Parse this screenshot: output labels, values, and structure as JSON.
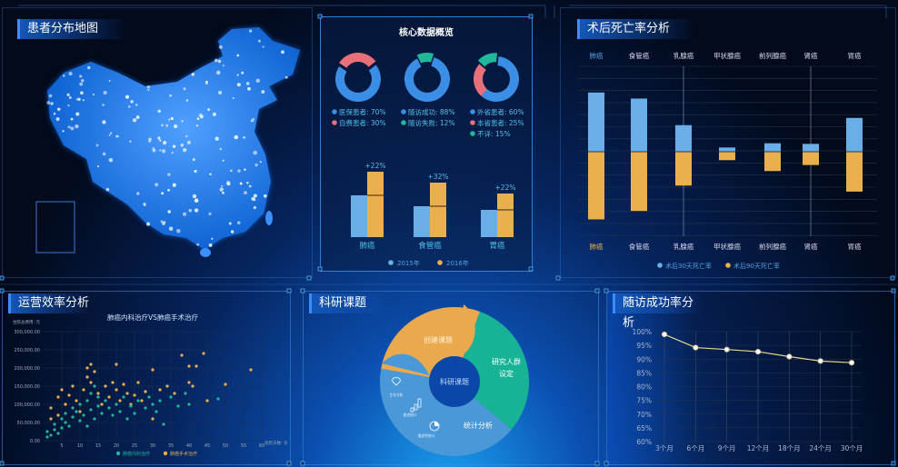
{
  "map_panel": {
    "title": "患者分布地图"
  },
  "core_panel": {
    "title": "核心数据概览",
    "donuts": [
      {
        "segments": [
          {
            "label": "医保患者",
            "value": 70,
            "color": "#3a8ee6"
          },
          {
            "label": "自费患者",
            "value": 30,
            "color": "#e8707a"
          }
        ],
        "highlight": 1,
        "legend": [
          "医保患者: 70%",
          "自费患者: 30%"
        ]
      },
      {
        "segments": [
          {
            "label": "随访成功",
            "value": 88,
            "color": "#3a8ee6"
          },
          {
            "label": "随访失败",
            "value": 12,
            "color": "#1fb89a"
          }
        ],
        "highlight": 1,
        "legend": [
          "随访成功: 88%",
          "随访失败: 12%"
        ]
      },
      {
        "segments": [
          {
            "label": "外省患者",
            "value": 60,
            "color": "#3a8ee6"
          },
          {
            "label": "本省患者",
            "value": 25,
            "color": "#e8707a"
          },
          {
            "label": "不详",
            "value": 15,
            "color": "#1fb89a"
          }
        ],
        "highlight": 2,
        "legend": [
          "外省患者: 60%",
          "本省患者: 25%",
          "不详: 15%"
        ]
      }
    ],
    "bars": {
      "categories": [
        "肺癌",
        "食管癌",
        "胃癌"
      ],
      "series": [
        {
          "name": "2015年",
          "values": [
            46,
            34,
            30
          ],
          "color": "#6aaee8"
        },
        {
          "name": "2016年",
          "values": [
            72,
            60,
            48
          ],
          "color": "#eab04d"
        }
      ],
      "growth": [
        "+22%",
        "+32%",
        "+22%"
      ]
    }
  },
  "mortality_panel": {
    "title": "术后死亡率分析",
    "chart_data": {
      "type": "bar",
      "categories": [
        "肺癌",
        "食管癌",
        "乳腺癌",
        "甲状腺癌",
        "前列腺癌",
        "肾癌",
        "胃癌"
      ],
      "series": [
        {
          "name": "术后30天死亡率",
          "values": [
            4.9,
            4.4,
            2.2,
            0.35,
            0.7,
            0.65,
            2.8
          ],
          "color": "#6aaee8"
        },
        {
          "name": "术后90天死亡率",
          "values": [
            5.6,
            4.9,
            2.8,
            0.7,
            1.6,
            1.1,
            3.3
          ],
          "color": "#eab04d"
        }
      ],
      "grid": true
    }
  },
  "efficiency_panel": {
    "title": "运营效率分析",
    "chart_data": {
      "type": "scatter",
      "title": "肺癌内科治疗VS肺癌手术治疗",
      "ylabel": "住院总费用: 元",
      "xlabel": "住院天数: 天",
      "xlim": [
        0,
        60
      ],
      "ylim": [
        0,
        300000
      ],
      "xticks": [
        "5",
        "10",
        "15",
        "20",
        "25",
        "30",
        "35",
        "40",
        "45",
        "50",
        "55",
        "60"
      ],
      "yticks": [
        "0.00",
        "50,000.00",
        "100,000.00",
        "150,000.00",
        "200,000.00",
        "250,000.00",
        "300,000.00"
      ],
      "series": [
        {
          "name": "肺癌内科治疗",
          "color": "#1fb89a",
          "points": [
            [
              1,
              10000
            ],
            [
              1,
              25000
            ],
            [
              2,
              15000
            ],
            [
              3,
              30000
            ],
            [
              3,
              45000
            ],
            [
              4,
              20000
            ],
            [
              5,
              60000
            ],
            [
              5,
              35000
            ],
            [
              6,
              50000
            ],
            [
              6,
              75000
            ],
            [
              7,
              40000
            ],
            [
              8,
              90000
            ],
            [
              8,
              65000
            ],
            [
              9,
              80000
            ],
            [
              10,
              100000
            ],
            [
              10,
              55000
            ],
            [
              11,
              70000
            ],
            [
              12,
              110000
            ],
            [
              12,
              40000
            ],
            [
              13,
              130000
            ],
            [
              13,
              85000
            ],
            [
              14,
              150000
            ],
            [
              14,
              60000
            ],
            [
              15,
              120000
            ],
            [
              15,
              95000
            ],
            [
              16,
              75000
            ],
            [
              17,
              110000
            ],
            [
              18,
              90000
            ],
            [
              19,
              70000
            ],
            [
              20,
              100000
            ],
            [
              21,
              80000
            ],
            [
              22,
              120000
            ],
            [
              23,
              60000
            ],
            [
              24,
              95000
            ],
            [
              25,
              75000
            ],
            [
              26,
              110000
            ],
            [
              28,
              90000
            ],
            [
              29,
              120000
            ],
            [
              30,
              100000
            ],
            [
              31,
              80000
            ],
            [
              32,
              110000
            ],
            [
              33,
              45000
            ],
            [
              35,
              120000
            ],
            [
              37,
              95000
            ],
            [
              39,
              130000
            ],
            [
              40,
              100000
            ],
            [
              48,
              115000
            ]
          ]
        },
        {
          "name": "肺癌手术治疗",
          "color": "#eab04d",
          "points": [
            [
              2,
              60000
            ],
            [
              2,
              90000
            ],
            [
              4,
              120000
            ],
            [
              4,
              70000
            ],
            [
              5,
              140000
            ],
            [
              6,
              100000
            ],
            [
              7,
              125000
            ],
            [
              8,
              150000
            ],
            [
              9,
              110000
            ],
            [
              10,
              80000
            ],
            [
              11,
              140000
            ],
            [
              12,
              200000
            ],
            [
              12,
              175000
            ],
            [
              13,
              210000
            ],
            [
              13,
              160000
            ],
            [
              14,
              190000
            ],
            [
              15,
              130000
            ],
            [
              16,
              100000
            ],
            [
              17,
              150000
            ],
            [
              18,
              120000
            ],
            [
              19,
              160000
            ],
            [
              20,
              140000
            ],
            [
              20,
              210000
            ],
            [
              21,
              110000
            ],
            [
              22,
              155000
            ],
            [
              23,
              130000
            ],
            [
              24,
              100000
            ],
            [
              25,
              125000
            ],
            [
              26,
              160000
            ],
            [
              27,
              110000
            ],
            [
              28,
              135000
            ],
            [
              30,
              195000
            ],
            [
              30,
              60000
            ],
            [
              32,
              140000
            ],
            [
              34,
              150000
            ],
            [
              36,
              130000
            ],
            [
              38,
              235000
            ],
            [
              40,
              205000
            ],
            [
              40,
              160000
            ],
            [
              41,
              150000
            ],
            [
              42,
              205000
            ],
            [
              44,
              240000
            ],
            [
              45,
              110000
            ],
            [
              50,
              155000
            ],
            [
              57,
              195000
            ]
          ]
        }
      ],
      "legend": "bottom"
    }
  },
  "research_panel": {
    "title": "科研课题",
    "center": "科研课题",
    "segments": [
      {
        "label": "创建课题",
        "color": "#eaa94d"
      },
      {
        "label_lines": [
          "研究人群",
          "设定"
        ],
        "color": "#18b397"
      },
      {
        "label": "统计分析",
        "color": "#4a98d8"
      }
    ],
    "tools": [
      {
        "icon": "heart-pulse-icon",
        "label": "生存分析"
      },
      {
        "icon": "bar-chart-icon",
        "label": "描述统计"
      },
      {
        "icon": "pie-chart-icon",
        "label": "描述性统计"
      }
    ]
  },
  "followup_panel": {
    "title": "随访成功率分析",
    "chart_data": {
      "type": "line",
      "categories": [
        "3个月",
        "6个月",
        "9个月",
        "12个月",
        "18个月",
        "24个月",
        "30个月"
      ],
      "values": [
        99,
        94.2,
        93.5,
        92.7,
        90.9,
        89.3,
        88.7
      ],
      "ylim": [
        60,
        100
      ],
      "yticks": [
        "60%",
        "65%",
        "70%",
        "75%",
        "80%",
        "85%",
        "90%",
        "95%",
        "100%"
      ],
      "line_color": "#e8d98a",
      "grid": true
    }
  }
}
